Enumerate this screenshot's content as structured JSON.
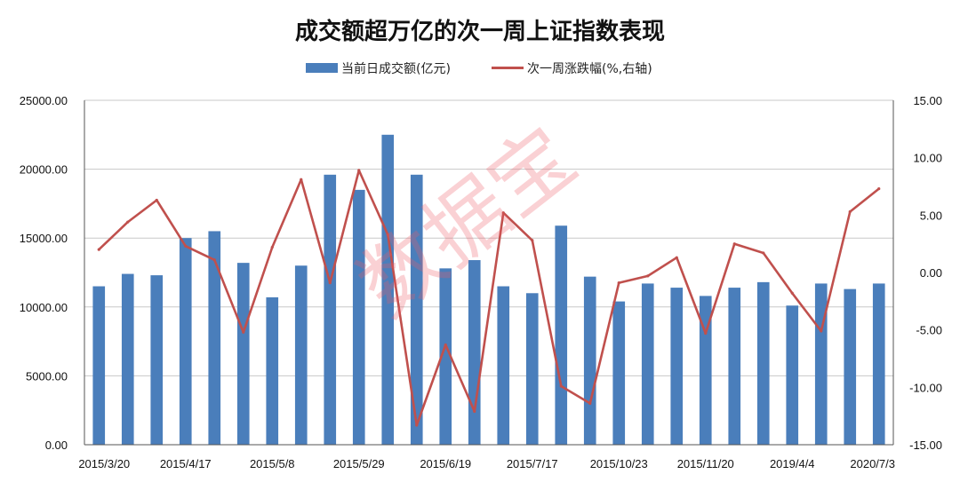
{
  "chart_data": {
    "type": "bar+line",
    "title": "成交额超万亿的次一周上证指数表现",
    "legend": {
      "placement": "top-center",
      "entries": [
        "当前日成交额(亿元)",
        "次一周涨跌幅(%,右轴)"
      ]
    },
    "colors": {
      "bar": "#4a7ebb",
      "line": "#c0504d",
      "grid": "#c8c8c8"
    },
    "y_left": {
      "range": [
        0,
        25000
      ],
      "ticks": [
        "0.00",
        "5000.00",
        "10000.00",
        "15000.00",
        "20000.00",
        "25000.00"
      ]
    },
    "y_right": {
      "range": [
        -15,
        15
      ],
      "ticks": [
        "-15.00",
        "-10.00",
        "-5.00",
        "0.00",
        "5.00",
        "10.00",
        "15.00"
      ]
    },
    "x_tick_labels": [
      "2015/3/20",
      "2015/4/17",
      "2015/5/8",
      "2015/5/29",
      "2015/6/19",
      "2015/7/17",
      "2015/10/23",
      "2015/11/20",
      "2019/4/4",
      "2020/7/3"
    ],
    "grid": true,
    "series": [
      {
        "name": "当前日成交额(亿元)",
        "kind": "bar",
        "axis": "left",
        "values": [
          11500,
          12400,
          12300,
          15000,
          15500,
          13200,
          10700,
          13000,
          19600,
          18500,
          22500,
          19600,
          12800,
          13400,
          11500,
          11000,
          15900,
          12200,
          10400,
          11700,
          11400,
          10800,
          11400,
          11800,
          10100,
          11700,
          11300,
          11700
        ]
      },
      {
        "name": "次一周涨跌幅(%,右轴)",
        "kind": "line",
        "axis": "right",
        "values": [
          2.0,
          4.4,
          6.3,
          2.3,
          1.1,
          -5.2,
          2.2,
          8.1,
          -0.9,
          8.9,
          3.3,
          -13.3,
          -6.3,
          -12.1,
          5.2,
          2.8,
          -9.9,
          -11.4,
          -0.9,
          -0.3,
          1.3,
          -5.3,
          2.5,
          1.7,
          -1.8,
          -5.1,
          5.3,
          7.3
        ]
      }
    ],
    "watermark": "数据宝"
  }
}
